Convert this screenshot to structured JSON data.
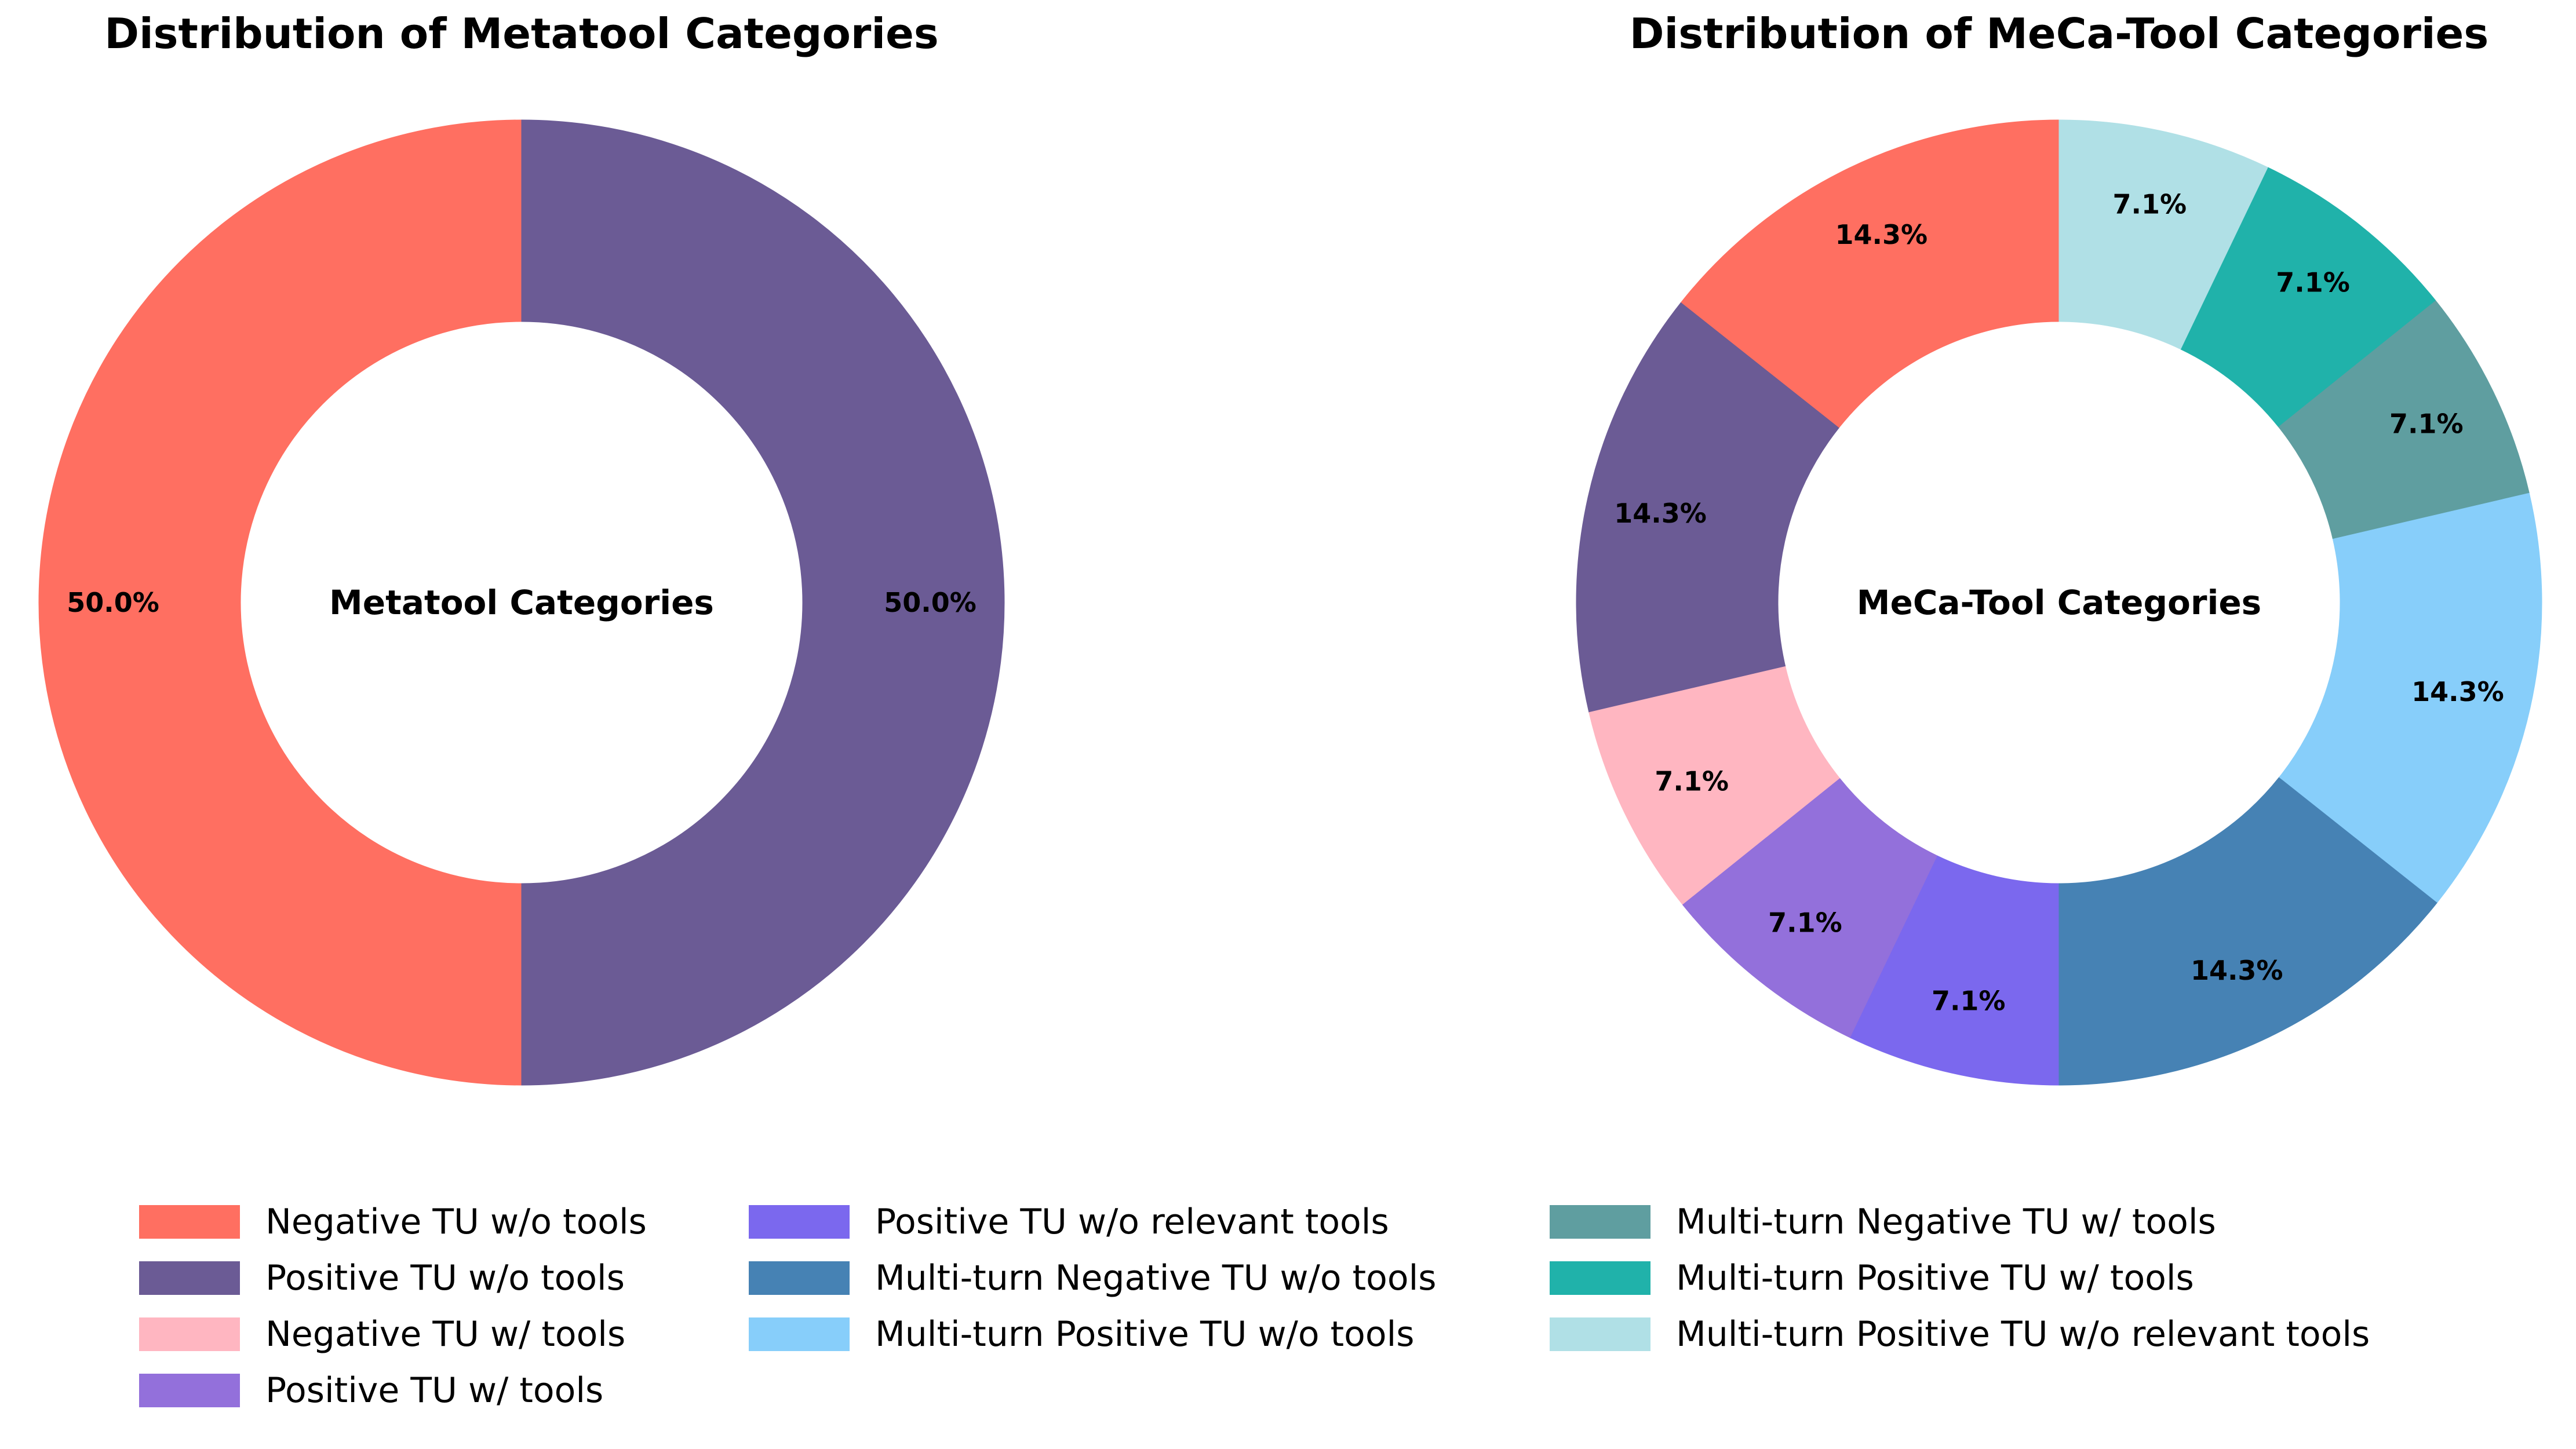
{
  "chart_data": [
    {
      "type": "pie",
      "variant": "donut",
      "title": "Distribution of Metatool Categories",
      "center_label": "Metatool Categories",
      "categories": [
        "Negative TU w/o tools",
        "Positive TU w/o tools"
      ],
      "values": [
        50.0,
        50.0
      ],
      "labels": [
        "50.0%",
        "50.0%"
      ],
      "colors": [
        "#FF6F61",
        "#6B5B95"
      ]
    },
    {
      "type": "pie",
      "variant": "donut",
      "title": "Distribution of MeCa-Tool Categories",
      "center_label": "MeCa-Tool Categories",
      "categories": [
        "Negative TU w/o tools",
        "Positive TU w/o tools",
        "Negative TU w/ tools",
        "Positive TU w/ tools",
        "Positive TU w/o relevant tools",
        "Multi-turn Negative TU w/o tools",
        "Multi-turn Positive TU w/o tools",
        "Multi-turn Negative TU w/ tools",
        "Multi-turn Positive TU w/ tools",
        "Multi-turn Positive TU w/o relevant tools"
      ],
      "values": [
        14.3,
        14.3,
        7.1,
        7.1,
        7.1,
        14.3,
        14.3,
        7.1,
        7.1,
        7.1
      ],
      "labels": [
        "14.3%",
        "14.3%",
        "7.1%",
        "7.1%",
        "7.1%",
        "14.3%",
        "14.3%",
        "7.1%",
        "7.1%",
        "7.1%"
      ],
      "colors": [
        "#FF6F61",
        "#6B5B95",
        "#FFB6C1",
        "#9370DB",
        "#7B68EE",
        "#4682B4",
        "#87CEFA",
        "#5F9EA0",
        "#20B2AA",
        "#B0E0E6"
      ]
    }
  ],
  "legend": {
    "placement": "bottom",
    "items": [
      {
        "label": "Negative TU w/o tools",
        "color": "#FF6F61"
      },
      {
        "label": "Positive TU w/o tools",
        "color": "#6B5B95"
      },
      {
        "label": "Negative TU w/ tools",
        "color": "#FFB6C1"
      },
      {
        "label": "Positive TU w/ tools",
        "color": "#9370DB"
      },
      {
        "label": "Positive TU w/o relevant tools",
        "color": "#7B68EE"
      },
      {
        "label": "Multi-turn Negative TU w/o tools",
        "color": "#4682B4"
      },
      {
        "label": "Multi-turn Positive TU w/o tools",
        "color": "#87CEFA"
      },
      {
        "label": "Multi-turn Negative TU w/ tools",
        "color": "#5F9EA0"
      },
      {
        "label": "Multi-turn Positive TU w/ tools",
        "color": "#20B2AA"
      },
      {
        "label": "Multi-turn Positive TU w/o relevant tools",
        "color": "#B0E0E6"
      }
    ]
  }
}
